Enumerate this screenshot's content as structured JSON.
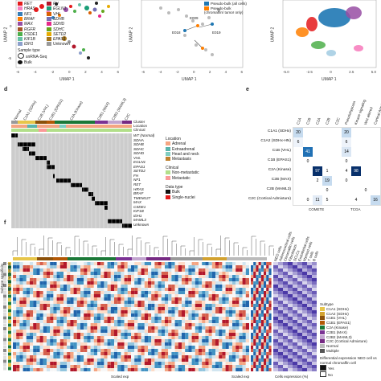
{
  "panel_a": {
    "axis_x": "UMAP 1",
    "axis_y": "UMAP 2",
    "x_ticks": [
      "-6",
      "-4",
      "-2",
      "0",
      "2",
      "4",
      "6"
    ],
    "y_ticks": [
      "0",
      "-5"
    ],
    "genes": [
      "RET",
      "HRAS",
      "NF1",
      "BRAF",
      "MAX",
      "RGFR",
      "CSDE1",
      "KIF1B",
      "IDH1",
      "FH",
      "EGLN1",
      "VHL",
      "SDHB",
      "SDHD",
      "SDHC",
      "SETD2",
      "EPAS1",
      "Unknown"
    ],
    "gene_colors": [
      "#e41a1c",
      "#f781bf",
      "#377eb8",
      "#ff7f00",
      "#984ea3",
      "#a65628",
      "#4daf4a",
      "#66c2a5",
      "#8da0cb",
      "#b2182b",
      "#1b9e77",
      "#d95f02",
      "#7570b3",
      "#e7298a",
      "#66a61e",
      "#e6ab02",
      "#a6761d",
      "#999999"
    ],
    "sample_type_title": "Sample type",
    "sample_types": [
      "snRNA-Seq",
      "Bulk"
    ]
  },
  "panel_b": {
    "axis_x": "UMAP 1",
    "axis_y": "UMAP 2",
    "x_ticks": [
      "-6",
      "-4",
      "-2",
      "0",
      "2",
      "4",
      "6"
    ],
    "labels": [
      "E009",
      "E018",
      "E019"
    ],
    "legend": [
      "Pseudo-bulk (all cells)",
      "Pseudo-bulk (chromaffin/ tumor only)"
    ]
  },
  "panel_c": {
    "axis_x": "UMAP 1",
    "axis_y": "UMAP 2",
    "x_ticks": [
      "-5.0",
      "-2.5",
      "0",
      "2.5",
      "5.0"
    ]
  },
  "panel_d": {
    "letter": "d",
    "column_headers": [
      "Normal",
      "C1A1 (SDHx)",
      "C1B (VHL)",
      "C1B1 (EPAS1)",
      "C2A (Kinase)",
      "C2B1 (MAX)",
      "C2B2 (MAML3)",
      "C2C"
    ],
    "track_labels": [
      "Cluster",
      "Location",
      "Clinical"
    ],
    "genes": [
      "WT (Normal)",
      "SDHA",
      "SDHB",
      "SDHC",
      "SDHD",
      "VHL",
      "EGLN1",
      "EPAS1",
      "SETD2",
      "FH",
      "NF1",
      "RET",
      "HRAS",
      "BRAF",
      "TMEM127",
      "MAX",
      "CSDE1",
      "KIF1B",
      "IDH1",
      "MAML3",
      "Unknown"
    ],
    "location_title": "Location",
    "location_items": [
      "Adrenal",
      "Extraadrenal",
      "Head and neck",
      "Metastasis"
    ],
    "location_colors": [
      "#f4a582",
      "#5ab4ac",
      "#80cdc1",
      "#bf812d"
    ],
    "clinical_title": "Clinical",
    "clinical_items": [
      "Non-metastatic",
      "Metastatic"
    ],
    "clinical_colors": [
      "#b2df8a",
      "#fb9a99"
    ],
    "data_type_title": "Data type",
    "data_type_items": [
      "Bulk",
      "Single-nuclei"
    ],
    "data_type_colors": [
      "#111111",
      "#e31a1c"
    ]
  },
  "panel_e": {
    "letter": "e",
    "col_headers": [
      "C1A",
      "C1B",
      "C2A",
      "C2B",
      "C2C",
      "Pseudohypoxia",
      "Kinase signaling",
      "Wnt altered",
      "Cortical Admixture"
    ],
    "row_labels": [
      "C1A1 (SDHx)",
      "C1A2 (SDHx-HN)",
      "C1B (VHL)",
      "C1B (EPAS1)",
      "C2A (Kinase)",
      "C2B (MAX)",
      "C2B (MAML3)",
      "C2C (Cortical Admixture)"
    ],
    "cells": [
      {
        "r": 0,
        "c": 0,
        "v": "20",
        "bg": "#c6dbef"
      },
      {
        "r": 1,
        "c": 0,
        "v": "6",
        "bg": "#eef3fa"
      },
      {
        "r": 2,
        "c": 1,
        "v": "41",
        "bg": "#2171b5"
      },
      {
        "r": 3,
        "c": 1,
        "v": "0",
        "bg": "#ffffff"
      },
      {
        "r": 4,
        "c": 2,
        "v": "97",
        "bg": "#08306b"
      },
      {
        "r": 4,
        "c": 3,
        "v": "1",
        "bg": "#ffffff"
      },
      {
        "r": 5,
        "c": 3,
        "v": "19",
        "bg": "#c6dbef"
      },
      {
        "r": 5,
        "c": 2,
        "v": "2",
        "bg": "#ffffff"
      },
      {
        "r": 6,
        "c": 3,
        "v": "0",
        "bg": "#ffffff"
      },
      {
        "r": 7,
        "c": 2,
        "v": "11",
        "bg": "#e3ecf7"
      },
      {
        "r": 7,
        "c": 3,
        "v": "5",
        "bg": "#ffffff"
      },
      {
        "r": 7,
        "c": 1,
        "v": "0",
        "bg": "#ffffff"
      },
      {
        "r": 0,
        "c": 5,
        "v": "20",
        "bg": "#c6dbef"
      },
      {
        "r": 1,
        "c": 5,
        "v": "6",
        "bg": "#eef3fa"
      },
      {
        "r": 2,
        "c": 5,
        "v": "14",
        "bg": "#dbe7f4"
      },
      {
        "r": 3,
        "c": 5,
        "v": "0",
        "bg": "#ffffff"
      },
      {
        "r": 4,
        "c": 6,
        "v": "98",
        "bg": "#08306b"
      },
      {
        "r": 4,
        "c": 5,
        "v": "4",
        "bg": "#ffffff"
      },
      {
        "r": 5,
        "c": 5,
        "v": "0",
        "bg": "#ffffff"
      },
      {
        "r": 6,
        "c": 7,
        "v": "0",
        "bg": "#ffffff"
      },
      {
        "r": 7,
        "c": 8,
        "v": "16",
        "bg": "#c6dbef"
      },
      {
        "r": 7,
        "c": 6,
        "v": "4",
        "bg": "#ffffff"
      }
    ],
    "source_left": "COMETE",
    "source_right": "TCGA"
  },
  "panel_f": {
    "letter": "f",
    "left_side_labels": [
      "Subtype specificity",
      "NEO cell vs normal"
    ],
    "scaled_exp_1": "Scaled exp",
    "scaled_exp_2": "Scaled exp",
    "cells_expression": "Cells expression (%)",
    "cell_type_labels": [
      "NEO cells",
      "Adrenocortical cells",
      "Chromaffin cells",
      "Fibroblasts",
      "SCLCs",
      "Endothelial cells",
      "Myeloid cells",
      "T cells",
      "B cells"
    ],
    "subtype_title": "Subtype",
    "subtype_items": [
      "C1A1 (SDHx)",
      "C1A2 (SDHx)",
      "C1B1 (VHL)",
      "C1B1 (EPAS1)",
      "C2A (Kinase)",
      "C2B1 (MAX)",
      "C2B2 (MAML3)",
      "C2C (Cortical Admixture)",
      "Normal",
      "Multiple"
    ],
    "subtype_colors": [
      "#e7c64b",
      "#d3a230",
      "#8c510a",
      "#b35806",
      "#1b7837",
      "#7b3294",
      "#c2a5cf",
      "#762a83",
      "#bbbbbb",
      "#555555"
    ],
    "diff_title": "Differential expression NEO cell vs normal chromaffin cell",
    "diff_items": [
      "Yes",
      "No"
    ]
  }
}
